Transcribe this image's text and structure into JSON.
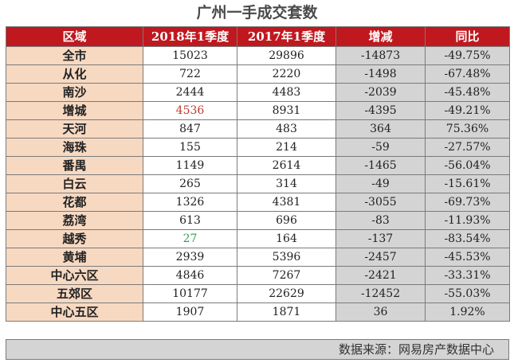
{
  "title": "广州一手成交套数",
  "headers": [
    "区域",
    "2018年1季度",
    "2017年1季度",
    "增减",
    "同比"
  ],
  "rows": [
    {
      "region": "全市",
      "q2018": "15023",
      "q2017": "29896",
      "diff": "-14873",
      "pct": "-49.75%"
    },
    {
      "region": "从化",
      "q2018": "722",
      "q2017": "2220",
      "diff": "-1498",
      "pct": "-67.48%"
    },
    {
      "region": "南沙",
      "q2018": "2444",
      "q2017": "4483",
      "diff": "-2039",
      "pct": "-45.48%"
    },
    {
      "region": "增城",
      "q2018": "4536",
      "q2017": "8931",
      "diff": "-4395",
      "pct": "-49.21%"
    },
    {
      "region": "天河",
      "q2018": "847",
      "q2017": "483",
      "diff": "364",
      "pct": "75.36%"
    },
    {
      "region": "海珠",
      "q2018": "155",
      "q2017": "214",
      "diff": "-59",
      "pct": "-27.57%"
    },
    {
      "region": "番禺",
      "q2018": "1149",
      "q2017": "2614",
      "diff": "-1465",
      "pct": "-56.04%"
    },
    {
      "region": "白云",
      "q2018": "265",
      "q2017": "314",
      "diff": "-49",
      "pct": "-15.61%"
    },
    {
      "region": "花都",
      "q2018": "1326",
      "q2017": "4381",
      "diff": "-3055",
      "pct": "-69.73%"
    },
    {
      "region": "荔湾",
      "q2018": "613",
      "q2017": "696",
      "diff": "-83",
      "pct": "-11.93%"
    },
    {
      "region": "越秀",
      "q2018": "27",
      "q2017": "164",
      "diff": "-137",
      "pct": "-83.54%"
    },
    {
      "region": "黄埔",
      "q2018": "2939",
      "q2017": "5396",
      "diff": "-2457",
      "pct": "-45.53%"
    },
    {
      "region": "中心六区",
      "q2018": "4846",
      "q2017": "7267",
      "diff": "-2421",
      "pct": "-33.31%"
    },
    {
      "region": "五郊区",
      "q2018": "10177",
      "q2017": "22629",
      "diff": "-12452",
      "pct": "-55.03%"
    },
    {
      "region": "中心五区",
      "q2018": "1907",
      "q2017": "1871",
      "diff": "36",
      "pct": "1.92%"
    }
  ],
  "source": "数据来源：网易房产数据中心",
  "colors": {
    "header_bg": "#c0181f",
    "region_bg": "#f7d9c2",
    "diff_bg": "#d4d4d4",
    "highlight_red": "#c0392b",
    "highlight_green": "#2e9e55"
  }
}
